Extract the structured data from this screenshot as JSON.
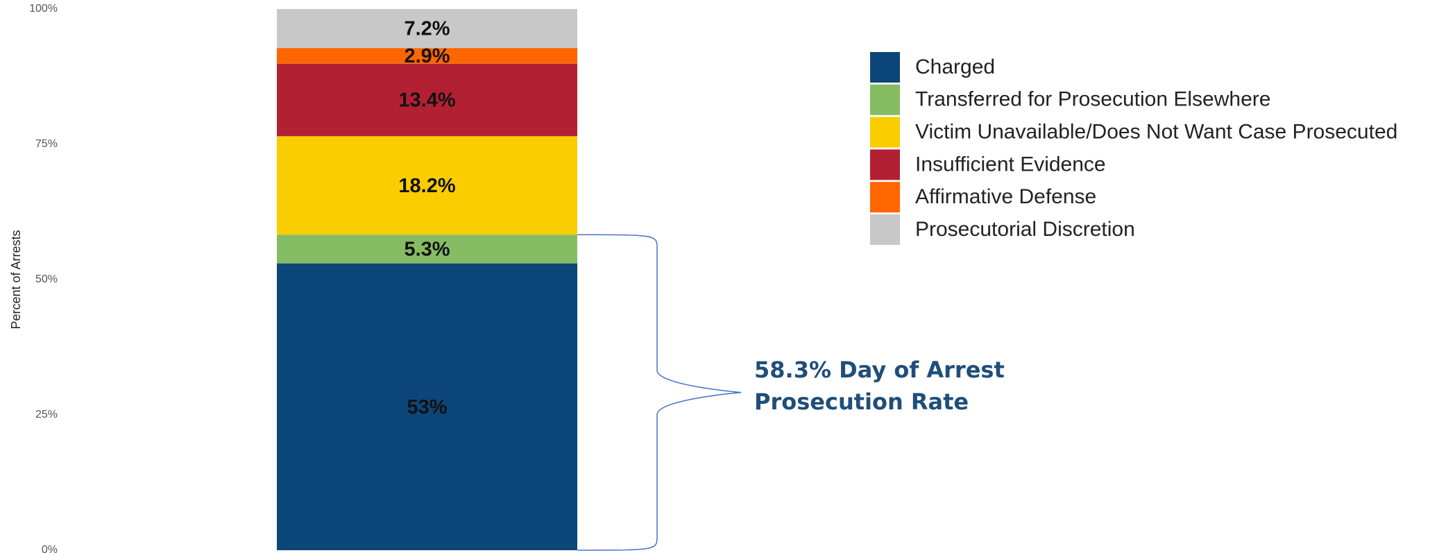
{
  "chart_data": {
    "type": "bar",
    "stacked": true,
    "y_label": "Percent of Arrests",
    "categories": [
      null
    ],
    "ylim": [
      0,
      100
    ],
    "yticks": [
      {
        "value": 0,
        "label": "0%"
      },
      {
        "value": 25,
        "label": "25%"
      },
      {
        "value": 50,
        "label": "50%"
      },
      {
        "value": 75,
        "label": "75%"
      },
      {
        "value": 100,
        "label": "100%"
      }
    ],
    "grid": false,
    "legend": "right",
    "series": [
      {
        "name": "Charged",
        "color": "#0c4678",
        "values": [
          53
        ],
        "value_labels": [
          "53%"
        ]
      },
      {
        "name": "Transferred for Prosecution Elsewhere",
        "color": "#86bc63",
        "values": [
          5.3
        ],
        "value_labels": [
          "5.3%"
        ]
      },
      {
        "name": "Victim Unavailable/Does Not Want Case Prosecuted",
        "color": "#facd00",
        "values": [
          18.2
        ],
        "value_labels": [
          "18.2%"
        ]
      },
      {
        "name": "Insufficient Evidence",
        "color": "#b32033",
        "values": [
          13.4
        ],
        "value_labels": [
          "13.4%"
        ]
      },
      {
        "name": "Affirmative Defense",
        "color": "#ff6600",
        "values": [
          2.9
        ],
        "value_labels": [
          "2.9%"
        ]
      },
      {
        "name": "Prosecutorial Discretion",
        "color": "#c8c8c8",
        "values": [
          7.2
        ],
        "value_labels": [
          "7.2%"
        ]
      }
    ],
    "annotation": {
      "lines": [
        "58.3% Day of Arrest",
        "Prosecution Rate"
      ],
      "color": "#1f4e79"
    }
  }
}
